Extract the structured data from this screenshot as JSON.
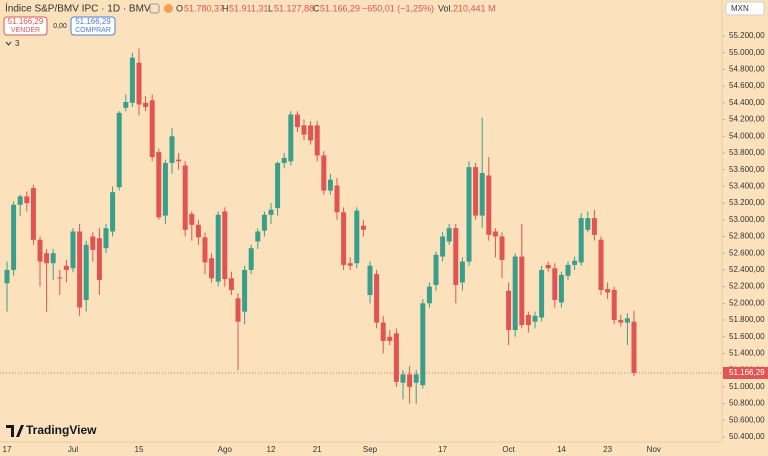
{
  "chart_data": {
    "type": "candlestick",
    "title": "Índice S&P/BMV IPC · 1D · BMV",
    "ohlc_legend": {
      "o": "O",
      "o_value": "51.780,37",
      "h": "H",
      "h_value": "51.911,31",
      "l": "L",
      "l_value": "51.127,88",
      "c": "C",
      "c_value": "51.166,29",
      "change": "−650,01 (−1,25%)",
      "vol": "Vol.",
      "vol_value": "210,441 M"
    },
    "trade": {
      "sell_price": "51.166,29",
      "sell": "VENDER",
      "spread": "0,00",
      "buy_price": "51.166,29",
      "buy": "COMPRAR"
    },
    "indicators": "3",
    "currency": "MXN",
    "logo": "TradingView",
    "price_label": "51.166,29",
    "up_color": "#3a9e8a",
    "down_color": "#e05454",
    "grid": false,
    "categories": [
      "17",
      null,
      null,
      null,
      null,
      null,
      null,
      null,
      null,
      null,
      "Jul",
      null,
      null,
      null,
      null,
      null,
      null,
      null,
      null,
      null,
      "15",
      null,
      null,
      null,
      null,
      null,
      null,
      null,
      null,
      null,
      null,
      null,
      null,
      "Ago",
      null,
      null,
      null,
      null,
      null,
      null,
      "12",
      null,
      null,
      null,
      null,
      null,
      null,
      "21",
      null,
      null,
      null,
      null,
      null,
      null,
      null,
      "Sep",
      null,
      null,
      null,
      null,
      null,
      null,
      null,
      null,
      null,
      null,
      "17",
      null,
      null,
      null,
      null,
      null,
      null,
      null,
      null,
      null,
      "Oct",
      null,
      null,
      null,
      null,
      null,
      null,
      null,
      "14",
      null,
      null,
      null,
      null,
      null,
      null,
      "23",
      null,
      null,
      null,
      null,
      null,
      null,
      "Nov"
    ],
    "open": [
      52240,
      52400,
      53180,
      53280,
      53380,
      52760,
      52600,
      52480,
      52310,
      52450,
      52420,
      52860,
      52040,
      52800,
      52780,
      52660,
      52860,
      53390,
      54340,
      54400,
      54880,
      54400,
      54430,
      53810,
      53050,
      53680,
      53720,
      53650,
      53070,
      52940,
      52790,
      52540,
      52260,
      53100,
      52300,
      52060,
      51900,
      52400,
      52740,
      52870,
      53060,
      53140,
      53680,
      53700,
      54260,
      54130,
      54130,
      54130,
      53770,
      53350,
      53410,
      53090,
      52480,
      52480,
      52930,
      52100,
      52350,
      51770,
      51600,
      51640,
      51050,
      51150,
      51050,
      51020,
      52000,
      52220,
      52560,
      52740,
      52900,
      52250,
      52500,
      53630,
      53050,
      53530,
      52860,
      52800,
      52150,
      51680,
      52560,
      51860,
      51780,
      51830,
      52460,
      52420,
      52010,
      52330,
      52460,
      52490,
      52880,
      53020,
      52760,
      52170,
      52160,
      51800,
      51770,
      51780.37,
      null,
      null,
      null
    ],
    "high": [
      52500,
      53220,
      53300,
      53340,
      53420,
      52800,
      52650,
      52650,
      52400,
      52520,
      52900,
      52950,
      52750,
      52850,
      52900,
      52950,
      53400,
      54300,
      54500,
      55000,
      55050,
      54480,
      54500,
      53850,
      53720,
      54100,
      53800,
      53700,
      53100,
      53000,
      52850,
      52600,
      53100,
      53150,
      52380,
      52120,
      52450,
      52700,
      52900,
      53100,
      53200,
      53700,
      53800,
      54300,
      54300,
      54200,
      54180,
      54180,
      53820,
      53550,
      53500,
      53150,
      52550,
      53150,
      53000,
      52500,
      52400,
      51850,
      51680,
      51700,
      51200,
      51250,
      51200,
      52050,
      52250,
      52620,
      52850,
      52950,
      52950,
      52550,
      53700,
      53680,
      54220,
      53750,
      52900,
      52850,
      52250,
      52600,
      52950,
      51900,
      51900,
      52450,
      52500,
      52480,
      52380,
      52500,
      52560,
      53080,
      53100,
      53120,
      52800,
      52250,
      52200,
      51860,
      51880,
      51911.31,
      null,
      null,
      null
    ],
    "low": [
      51900,
      52330,
      53050,
      53100,
      52700,
      52200,
      51900,
      52280,
      52100,
      52250,
      52370,
      51850,
      51900,
      52500,
      52100,
      52600,
      52800,
      53350,
      54300,
      54350,
      54250,
      54300,
      53700,
      53000,
      52950,
      53550,
      53600,
      52800,
      52750,
      52700,
      52350,
      52250,
      52200,
      52200,
      52100,
      51200,
      51750,
      52350,
      52650,
      52800,
      52950,
      53050,
      53620,
      53650,
      54050,
      53950,
      53900,
      53700,
      53300,
      53300,
      53000,
      52400,
      52400,
      52420,
      52800,
      52000,
      51700,
      51400,
      51500,
      51000,
      50850,
      50800,
      50800,
      50980,
      51950,
      52150,
      52500,
      52700,
      52000,
      52150,
      52450,
      53000,
      52900,
      52750,
      52550,
      52300,
      51500,
      51600,
      51700,
      51650,
      51700,
      51780,
      52380,
      51950,
      51950,
      52280,
      52400,
      52450,
      52850,
      52750,
      52100,
      52050,
      51750,
      51720,
      51500,
      51127.88,
      null,
      null,
      null
    ],
    "close": [
      52400,
      53180,
      53280,
      53200,
      52760,
      52500,
      52480,
      52600,
      52300,
      52400,
      52860,
      51950,
      52700,
      52640,
      52280,
      52900,
      53330,
      54280,
      54410,
      54940,
      54380,
      54350,
      53750,
      53030,
      53680,
      54000,
      53700,
      52880,
      52940,
      52790,
      52490,
      52300,
      53060,
      52290,
      52160,
      51780,
      52400,
      52660,
      52860,
      53060,
      53120,
      53680,
      53740,
      54260,
      54110,
      54020,
      53950,
      53770,
      53350,
      53480,
      53090,
      52460,
      52450,
      53110,
      52880,
      52450,
      51770,
      51550,
      51550,
      51060,
      51150,
      51000,
      51150,
      52000,
      52200,
      52580,
      52800,
      52900,
      52220,
      52500,
      53630,
      53050,
      53560,
      52820,
      52800,
      52520,
      51680,
      52560,
      51740,
      51740,
      51850,
      52400,
      52420,
      52040,
      52340,
      52460,
      52510,
      53020,
      53020,
      52820,
      52160,
      52130,
      51800,
      51770,
      51820,
      51166.29,
      null,
      null,
      null
    ],
    "ylim": [
      50340,
      55631
    ],
    "yticks": [
      {
        "value": 50400,
        "label": "50.400,00"
      },
      {
        "value": 50600,
        "label": "50.600,00"
      },
      {
        "value": 50800,
        "label": "50.800,00"
      },
      {
        "value": 51000,
        "label": "51.000,00"
      },
      {
        "value": 51200,
        "label": "51.200,00"
      },
      {
        "value": 51400,
        "label": "51.400,00"
      },
      {
        "value": 51600,
        "label": "51.600,00"
      },
      {
        "value": 51800,
        "label": "51.800,00"
      },
      {
        "value": 52000,
        "label": "52.000,00"
      },
      {
        "value": 52200,
        "label": "52.200,00"
      },
      {
        "value": 52400,
        "label": "52.400,00"
      },
      {
        "value": 52600,
        "label": "52.600,00"
      },
      {
        "value": 52800,
        "label": "52.800,00"
      },
      {
        "value": 53000,
        "label": "53.000,00"
      },
      {
        "value": 53200,
        "label": "53.200,00"
      },
      {
        "value": 53400,
        "label": "53.400,00"
      },
      {
        "value": 53600,
        "label": "53.600,00"
      },
      {
        "value": 53800,
        "label": "53.800,00"
      },
      {
        "value": 54000,
        "label": "54.000,00"
      },
      {
        "value": 54200,
        "label": "54.200,00"
      },
      {
        "value": 54400,
        "label": "54.400,00"
      },
      {
        "value": 54600,
        "label": "54.600,00"
      },
      {
        "value": 54800,
        "label": "54.800,00"
      },
      {
        "value": 55000,
        "label": "55.000,00"
      },
      {
        "value": 55200,
        "label": "55.200,00"
      }
    ]
  }
}
